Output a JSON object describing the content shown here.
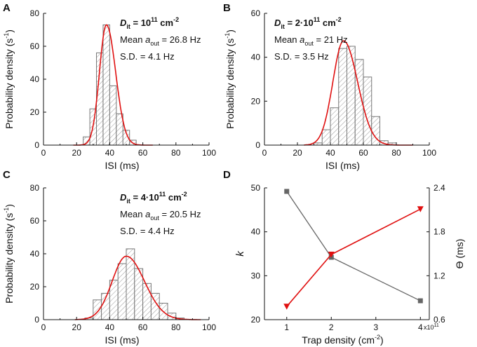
{
  "chart_data": [
    {
      "type": "bar",
      "panel": "A",
      "xlabel": "ISI (ms)",
      "ylabel": "Probability density (s",
      "ylabel_sup": "-1",
      "ylabel_end": ")",
      "xlim": [
        0,
        100
      ],
      "ylim": [
        0,
        80
      ],
      "xticks": [
        "0",
        "20",
        "40",
        "60",
        "80",
        "100"
      ],
      "yticks": [
        "0",
        "20",
        "40",
        "60",
        "80"
      ],
      "bin_width": 4,
      "bins_start": [
        24,
        28,
        32,
        36,
        40,
        44,
        48,
        52
      ],
      "values": [
        5,
        22,
        56,
        73,
        36,
        19,
        9,
        3
      ],
      "fit": {
        "type": "gamma-like",
        "peak_x": 38,
        "peak_y": 73,
        "sd_left": 4.2,
        "sd_right": 5.6
      },
      "annotation": {
        "d": "D",
        "d_sub": "it",
        "d_mid": " = 10",
        "d_exp": "11",
        "d_unit": " cm",
        "d_unit_exp": "-2",
        "mean_prefix": "Mean ",
        "mean_var": "a",
        "mean_sub": "out",
        "mean_val": " = 26.8 Hz",
        "sd": "S.D. = 4.1 Hz"
      }
    },
    {
      "type": "bar",
      "panel": "B",
      "xlabel": "ISI (ms)",
      "ylabel": "Probability density (s",
      "ylabel_sup": "-1",
      "ylabel_end": ")",
      "xlim": [
        0,
        100
      ],
      "ylim": [
        0,
        60
      ],
      "xticks": [
        "0",
        "20",
        "40",
        "60",
        "80",
        "100"
      ],
      "yticks": [
        "0",
        "20",
        "40",
        "60"
      ],
      "bin_width": 5,
      "bins_start": [
        30,
        35,
        40,
        45,
        50,
        55,
        60,
        65,
        70,
        75
      ],
      "values": [
        1,
        7,
        17,
        44,
        45,
        39,
        31,
        13,
        2,
        1
      ],
      "fit": {
        "type": "gamma-like",
        "peak_x": 48,
        "peak_y": 47.5,
        "sd_left": 6.5,
        "sd_right": 8.5
      },
      "annotation": {
        "d": "D",
        "d_sub": "it",
        "d_mid": " = 2·10",
        "d_exp": "11",
        "d_unit": " cm",
        "d_unit_exp": "-2",
        "mean_prefix": "Mean ",
        "mean_var": "a",
        "mean_sub": "out",
        "mean_val": " = 21 Hz",
        "sd": "S.D. = 3.5 Hz"
      }
    },
    {
      "type": "bar",
      "panel": "C",
      "xlabel": "ISI (ms)",
      "ylabel": "Probability density (s",
      "ylabel_sup": "-1",
      "ylabel_end": ")",
      "xlim": [
        0,
        100
      ],
      "ylim": [
        0,
        80
      ],
      "xticks": [
        "0",
        "20",
        "40",
        "60",
        "80",
        "100"
      ],
      "yticks": [
        "0",
        "20",
        "40",
        "60",
        "80"
      ],
      "bin_width": 5,
      "bins_start": [
        25,
        30,
        35,
        40,
        45,
        50,
        55,
        60,
        65,
        70,
        75,
        80
      ],
      "values": [
        1,
        12,
        16,
        24,
        34,
        43,
        31,
        22,
        16,
        10,
        4,
        1
      ],
      "fit": {
        "type": "gamma-like",
        "peak_x": 50,
        "peak_y": 38.5,
        "sd_left": 8.5,
        "sd_right": 11
      },
      "annotation": {
        "d": "D",
        "d_sub": "it",
        "d_mid": " = 4·10",
        "d_exp": "11",
        "d_unit": " cm",
        "d_unit_exp": "-2",
        "mean_prefix": "Mean ",
        "mean_var": "a",
        "mean_sub": "out",
        "mean_val": " = 20.5 Hz",
        "sd": "S.D. = 4.4 Hz"
      }
    },
    {
      "type": "line",
      "panel": "D",
      "xlabel": "Trap density (cm",
      "xlabel_sup": "-2",
      "xlabel_end": ")",
      "x_multiplier": "x10",
      "x_multiplier_exp": "11",
      "xlim": [
        0.5,
        4.2
      ],
      "xticks": [
        "1",
        "2",
        "3",
        "4"
      ],
      "y_left_label": "k",
      "y_left_lim": [
        20,
        50
      ],
      "y_left_ticks": [
        "20",
        "30",
        "40",
        "50"
      ],
      "y_right_label": "ϴ (ms)",
      "y_right_lim": [
        0.6,
        2.4
      ],
      "y_right_ticks": [
        "0.6",
        "1.2",
        "1.8",
        "2.4"
      ],
      "series": [
        {
          "name": "k",
          "axis": "left",
          "x": [
            1,
            2,
            4
          ],
          "values": [
            49.2,
            34.2,
            24.3
          ],
          "color": "#666666",
          "marker": "square"
        },
        {
          "name": "theta",
          "axis": "right",
          "x": [
            1,
            2,
            4
          ],
          "values": [
            0.78,
            1.49,
            2.11
          ],
          "color": "#e01010",
          "marker": "triangle-down"
        }
      ]
    }
  ]
}
